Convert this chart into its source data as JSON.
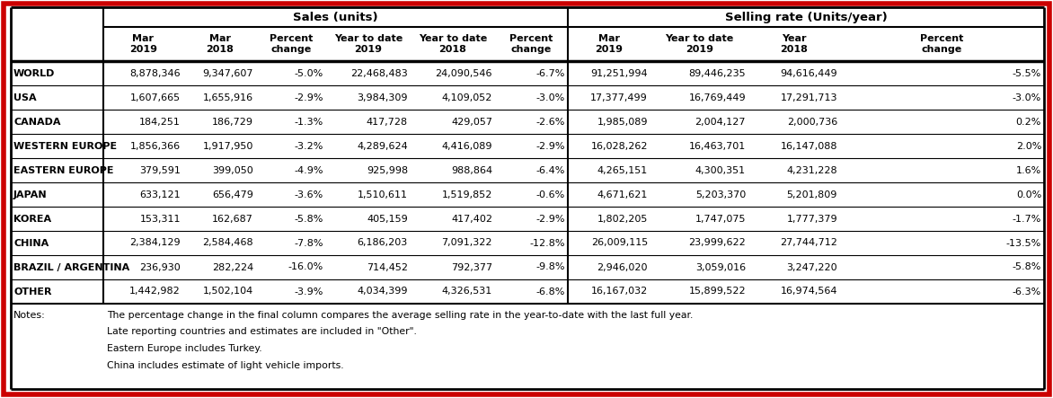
{
  "rows": [
    [
      "WORLD",
      "8,878,346",
      "9,347,607",
      "-5.0%",
      "22,468,483",
      "24,090,546",
      "-6.7%",
      "91,251,994",
      "89,446,235",
      "94,616,449",
      "-5.5%"
    ],
    [
      "USA",
      "1,607,665",
      "1,655,916",
      "-2.9%",
      "3,984,309",
      "4,109,052",
      "-3.0%",
      "17,377,499",
      "16,769,449",
      "17,291,713",
      "-3.0%"
    ],
    [
      "CANADA",
      "184,251",
      "186,729",
      "-1.3%",
      "417,728",
      "429,057",
      "-2.6%",
      "1,985,089",
      "2,004,127",
      "2,000,736",
      "0.2%"
    ],
    [
      "WESTERN EUROPE",
      "1,856,366",
      "1,917,950",
      "-3.2%",
      "4,289,624",
      "4,416,089",
      "-2.9%",
      "16,028,262",
      "16,463,701",
      "16,147,088",
      "2.0%"
    ],
    [
      "EASTERN EUROPE",
      "379,591",
      "399,050",
      "-4.9%",
      "925,998",
      "988,864",
      "-6.4%",
      "4,265,151",
      "4,300,351",
      "4,231,228",
      "1.6%"
    ],
    [
      "JAPAN",
      "633,121",
      "656,479",
      "-3.6%",
      "1,510,611",
      "1,519,852",
      "-0.6%",
      "4,671,621",
      "5,203,370",
      "5,201,809",
      "0.0%"
    ],
    [
      "KOREA",
      "153,311",
      "162,687",
      "-5.8%",
      "405,159",
      "417,402",
      "-2.9%",
      "1,802,205",
      "1,747,075",
      "1,777,379",
      "-1.7%"
    ],
    [
      "CHINA",
      "2,384,129",
      "2,584,468",
      "-7.8%",
      "6,186,203",
      "7,091,322",
      "-12.8%",
      "26,009,115",
      "23,999,622",
      "27,744,712",
      "-13.5%"
    ],
    [
      "BRAZIL / ARGENTINA",
      "236,930",
      "282,224",
      "-16.0%",
      "714,452",
      "792,377",
      "-9.8%",
      "2,946,020",
      "3,059,016",
      "3,247,220",
      "-5.8%"
    ],
    [
      "OTHER",
      "1,442,982",
      "1,502,104",
      "-3.9%",
      "4,034,399",
      "4,326,531",
      "-6.8%",
      "16,167,032",
      "15,899,522",
      "16,974,564",
      "-6.3%"
    ]
  ],
  "col_headers": [
    "",
    "Mar\n2019",
    "Mar\n2018",
    "Percent\nchange",
    "Year to date\n2019",
    "Year to date\n2018",
    "Percent\nchange",
    "Mar\n2019",
    "Year to date\n2019",
    "Year\n2018",
    "Percent\nchange"
  ],
  "notes_label": "Notes:",
  "notes": [
    "The percentage change in the final column compares the average selling rate in the year-to-date with the last full year.",
    "Late reporting countries and estimates are included in \"Other\".",
    "Eastern Europe includes Turkey.",
    "China includes estimate of light vehicle imports."
  ],
  "outer_border_color": "#cc0000",
  "text_color": "#000000",
  "sales_header": "Sales (units)",
  "selling_header": "Selling rate (Units/year)",
  "n_cols": 11,
  "n_data_rows": 10,
  "figw": 11.72,
  "figh": 4.43,
  "dpi": 100
}
